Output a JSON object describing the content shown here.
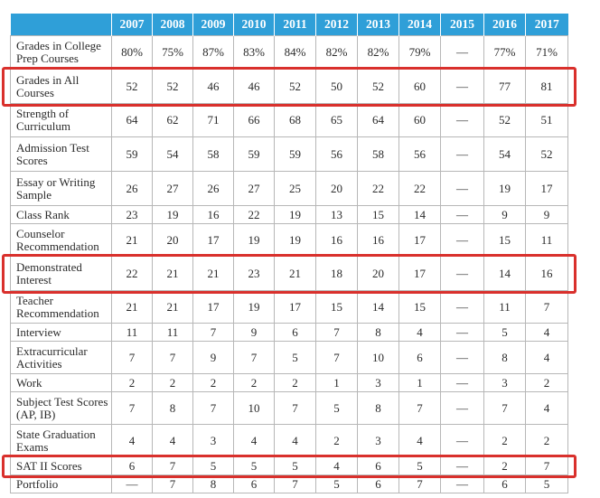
{
  "table": {
    "years": [
      "2007",
      "2008",
      "2009",
      "2010",
      "2011",
      "2012",
      "2013",
      "2014",
      "2015",
      "2016",
      "2017"
    ],
    "rows": [
      {
        "label": "Grades in College Prep Courses",
        "values": [
          "80%",
          "75%",
          "87%",
          "83%",
          "84%",
          "82%",
          "82%",
          "79%",
          "—",
          "77%",
          "71%"
        ],
        "highlighted": false
      },
      {
        "label": "Grades in All Courses",
        "values": [
          "52",
          "52",
          "46",
          "46",
          "52",
          "50",
          "52",
          "60",
          "—",
          "77",
          "81"
        ],
        "highlighted": true
      },
      {
        "label": "Strength of Curriculum",
        "values": [
          "64",
          "62",
          "71",
          "66",
          "68",
          "65",
          "64",
          "60",
          "—",
          "52",
          "51"
        ],
        "highlighted": false
      },
      {
        "label": "Admission Test Scores",
        "values": [
          "59",
          "54",
          "58",
          "59",
          "59",
          "56",
          "58",
          "56",
          "—",
          "54",
          "52"
        ],
        "highlighted": false
      },
      {
        "label": "Essay or Writing Sample",
        "values": [
          "26",
          "27",
          "26",
          "27",
          "25",
          "20",
          "22",
          "22",
          "—",
          "19",
          "17"
        ],
        "highlighted": false
      },
      {
        "label": "Class Rank",
        "values": [
          "23",
          "19",
          "16",
          "22",
          "19",
          "13",
          "15",
          "14",
          "—",
          "9",
          "9"
        ],
        "highlighted": false
      },
      {
        "label": "Counselor Recommendation",
        "values": [
          "21",
          "20",
          "17",
          "19",
          "19",
          "16",
          "16",
          "17",
          "—",
          "15",
          "11"
        ],
        "highlighted": false
      },
      {
        "label": "Demonstrated Interest",
        "values": [
          "22",
          "21",
          "21",
          "23",
          "21",
          "18",
          "20",
          "17",
          "—",
          "14",
          "16"
        ],
        "highlighted": true
      },
      {
        "label": "Teacher Recommendation",
        "values": [
          "21",
          "21",
          "17",
          "19",
          "17",
          "15",
          "14",
          "15",
          "—",
          "11",
          "7"
        ],
        "highlighted": false
      },
      {
        "label": "Interview",
        "values": [
          "11",
          "11",
          "7",
          "9",
          "6",
          "7",
          "8",
          "4",
          "—",
          "5",
          "4"
        ],
        "highlighted": false
      },
      {
        "label": "Extracurricular Activities",
        "values": [
          "7",
          "7",
          "9",
          "7",
          "5",
          "7",
          "10",
          "6",
          "—",
          "8",
          "4"
        ],
        "highlighted": false
      },
      {
        "label": "Work",
        "values": [
          "2",
          "2",
          "2",
          "2",
          "2",
          "1",
          "3",
          "1",
          "—",
          "3",
          "2"
        ],
        "highlighted": false
      },
      {
        "label": "Subject Test Scores (AP, IB)",
        "values": [
          "7",
          "8",
          "7",
          "10",
          "7",
          "5",
          "8",
          "7",
          "—",
          "7",
          "4"
        ],
        "highlighted": false
      },
      {
        "label": "State Graduation Exams",
        "values": [
          "4",
          "4",
          "3",
          "4",
          "4",
          "2",
          "3",
          "4",
          "—",
          "2",
          "2"
        ],
        "highlighted": false
      },
      {
        "label": "SAT II Scores",
        "values": [
          "6",
          "7",
          "5",
          "5",
          "5",
          "4",
          "6",
          "5",
          "—",
          "2",
          "7"
        ],
        "highlighted": true
      },
      {
        "label": "Portfolio",
        "values": [
          "—",
          "7",
          "8",
          "6",
          "7",
          "5",
          "6",
          "7",
          "—",
          "6",
          "5"
        ],
        "highlighted": false
      }
    ]
  },
  "colors": {
    "header_bg": "#2f9fd8",
    "header_text": "#ffffff",
    "highlight_border": "#d9302c",
    "grid": "#b7b7b7"
  }
}
